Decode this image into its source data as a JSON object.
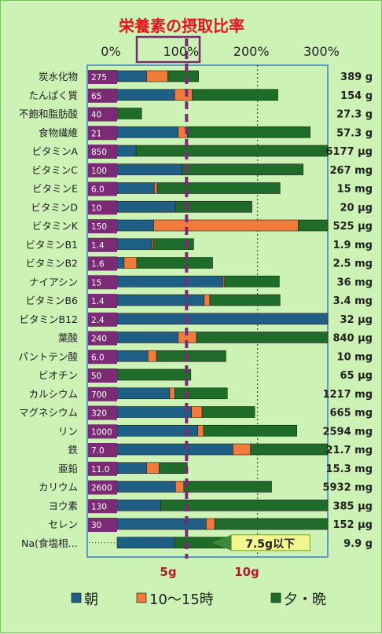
{
  "title": "栄養素の摂取比率",
  "colors": {
    "morning": "#1f5f86",
    "snack": "#f07b3a",
    "evening": "#1e6b2a",
    "amount_bg": "#7a2b74",
    "percent_axis_text": "#ffffff",
    "highlight_box": "#7a2b74",
    "dashed": "#7a2b74",
    "na_label": "#b31a2d",
    "callout_fill": "#f3f58f"
  },
  "chart_data": {
    "type": "bar",
    "orientation": "horizontal",
    "stacked": true,
    "x_axis_ticks": [
      "0%",
      "100%",
      "200%",
      "300%"
    ],
    "xlim": [
      0,
      300
    ],
    "highlight_tick": "100%",
    "legend": [
      "朝",
      "10～15時",
      "夕・晩"
    ],
    "series": [
      {
        "name": "朝",
        "color_key": "morning"
      },
      {
        "name": "10～15時",
        "color_key": "snack"
      },
      {
        "name": "夕・晩",
        "color_key": "evening"
      }
    ],
    "rows": [
      {
        "label": "炭水化物",
        "amount": "275",
        "morning": 42,
        "snack": 30,
        "evening": 44,
        "total": "389",
        "unit": "g"
      },
      {
        "label": "たんぱく質",
        "amount": "65",
        "morning": 82,
        "snack": 25,
        "evening": 122,
        "total": "154",
        "unit": "g"
      },
      {
        "label": "不飽和脂肪酸",
        "amount": "40",
        "morning": 0,
        "snack": 0,
        "evening": 35,
        "total": "27.3",
        "unit": "g"
      },
      {
        "label": "食物繊維",
        "amount": "21",
        "morning": 87,
        "snack": 13,
        "evening": 175,
        "total": "57.3",
        "unit": "g"
      },
      {
        "label": "ビタミンA",
        "amount": "850",
        "morning": 27,
        "snack": 0,
        "evening": 273,
        "total": "6177",
        "unit": "μg"
      },
      {
        "label": "ビタミンC",
        "amount": "100",
        "morning": 92,
        "snack": 0,
        "evening": 173,
        "total": "267",
        "unit": "mg"
      },
      {
        "label": "ビタミンE",
        "amount": "6.0",
        "morning": 53,
        "snack": 4,
        "evening": 175,
        "total": "15",
        "unit": "mg"
      },
      {
        "label": "ビタミンD",
        "amount": "10",
        "morning": 83,
        "snack": 0,
        "evening": 109,
        "total": "20",
        "unit": "μg"
      },
      {
        "label": "ビタミンK",
        "amount": "150",
        "morning": 52,
        "snack": 206,
        "evening": 42,
        "total": "525",
        "unit": "μg"
      },
      {
        "label": "ビタミンB1",
        "amount": "1.4",
        "morning": 50,
        "snack": 2,
        "evening": 57,
        "total": "1.9",
        "unit": "mg"
      },
      {
        "label": "ビタミンB2",
        "amount": "1.6",
        "morning": 10,
        "snack": 18,
        "evening": 108,
        "total": "2.5",
        "unit": "mg"
      },
      {
        "label": "ナイアシン",
        "amount": "15",
        "morning": 151,
        "snack": 2,
        "evening": 78,
        "total": "36",
        "unit": "mg"
      },
      {
        "label": "ビタミンB6",
        "amount": "1.4",
        "morning": 124,
        "snack": 8,
        "evening": 100,
        "total": "3.4",
        "unit": "mg"
      },
      {
        "label": "ビタミンB12",
        "amount": "2.4",
        "morning": 300,
        "snack": 0,
        "evening": 0,
        "total": "32",
        "unit": "μg"
      },
      {
        "label": "葉酸",
        "amount": "240",
        "morning": 87,
        "snack": 26,
        "evening": 187,
        "total": "840",
        "unit": "μg"
      },
      {
        "label": "パントテン酸",
        "amount": "6.0",
        "morning": 44,
        "snack": 12,
        "evening": 99,
        "total": "10",
        "unit": "mg"
      },
      {
        "label": "ビオチン",
        "amount": "50",
        "morning": 0,
        "snack": 0,
        "evening": 105,
        "total": "65",
        "unit": "μg"
      },
      {
        "label": "カルシウム",
        "amount": "700",
        "morning": 75,
        "snack": 7,
        "evening": 75,
        "total": "1217",
        "unit": "mg"
      },
      {
        "label": "マグネシウム",
        "amount": "320",
        "morning": 106,
        "snack": 15,
        "evening": 75,
        "total": "665",
        "unit": "mg"
      },
      {
        "label": "リン",
        "amount": "1000",
        "morning": 115,
        "snack": 8,
        "evening": 133,
        "total": "2594",
        "unit": "mg"
      },
      {
        "label": "鉄",
        "amount": "7.0",
        "morning": 165,
        "snack": 25,
        "evening": 110,
        "total": "21.7",
        "unit": "mg"
      },
      {
        "label": "亜鉛",
        "amount": "11.0",
        "morning": 42,
        "snack": 18,
        "evening": 40,
        "total": "15.3",
        "unit": "mg"
      },
      {
        "label": "カリウム",
        "amount": "2600",
        "morning": 83,
        "snack": 12,
        "evening": 125,
        "total": "5932",
        "unit": "mg"
      },
      {
        "label": "ヨウ素",
        "amount": "130",
        "morning": 62,
        "snack": 0,
        "evening": 238,
        "total": "385",
        "unit": "μg"
      },
      {
        "label": "セレン",
        "amount": "30",
        "morning": 127,
        "snack": 12,
        "evening": 161,
        "total": "152",
        "unit": "μg"
      },
      {
        "label": "Na(食塩相…",
        "amount": "",
        "morning": 82,
        "snack": 0,
        "evening": 108,
        "total": "9.9",
        "unit": "g"
      }
    ],
    "na_row": {
      "callout": "7.5g以下",
      "marker_5g": "5g",
      "marker_10g": "10g"
    }
  }
}
